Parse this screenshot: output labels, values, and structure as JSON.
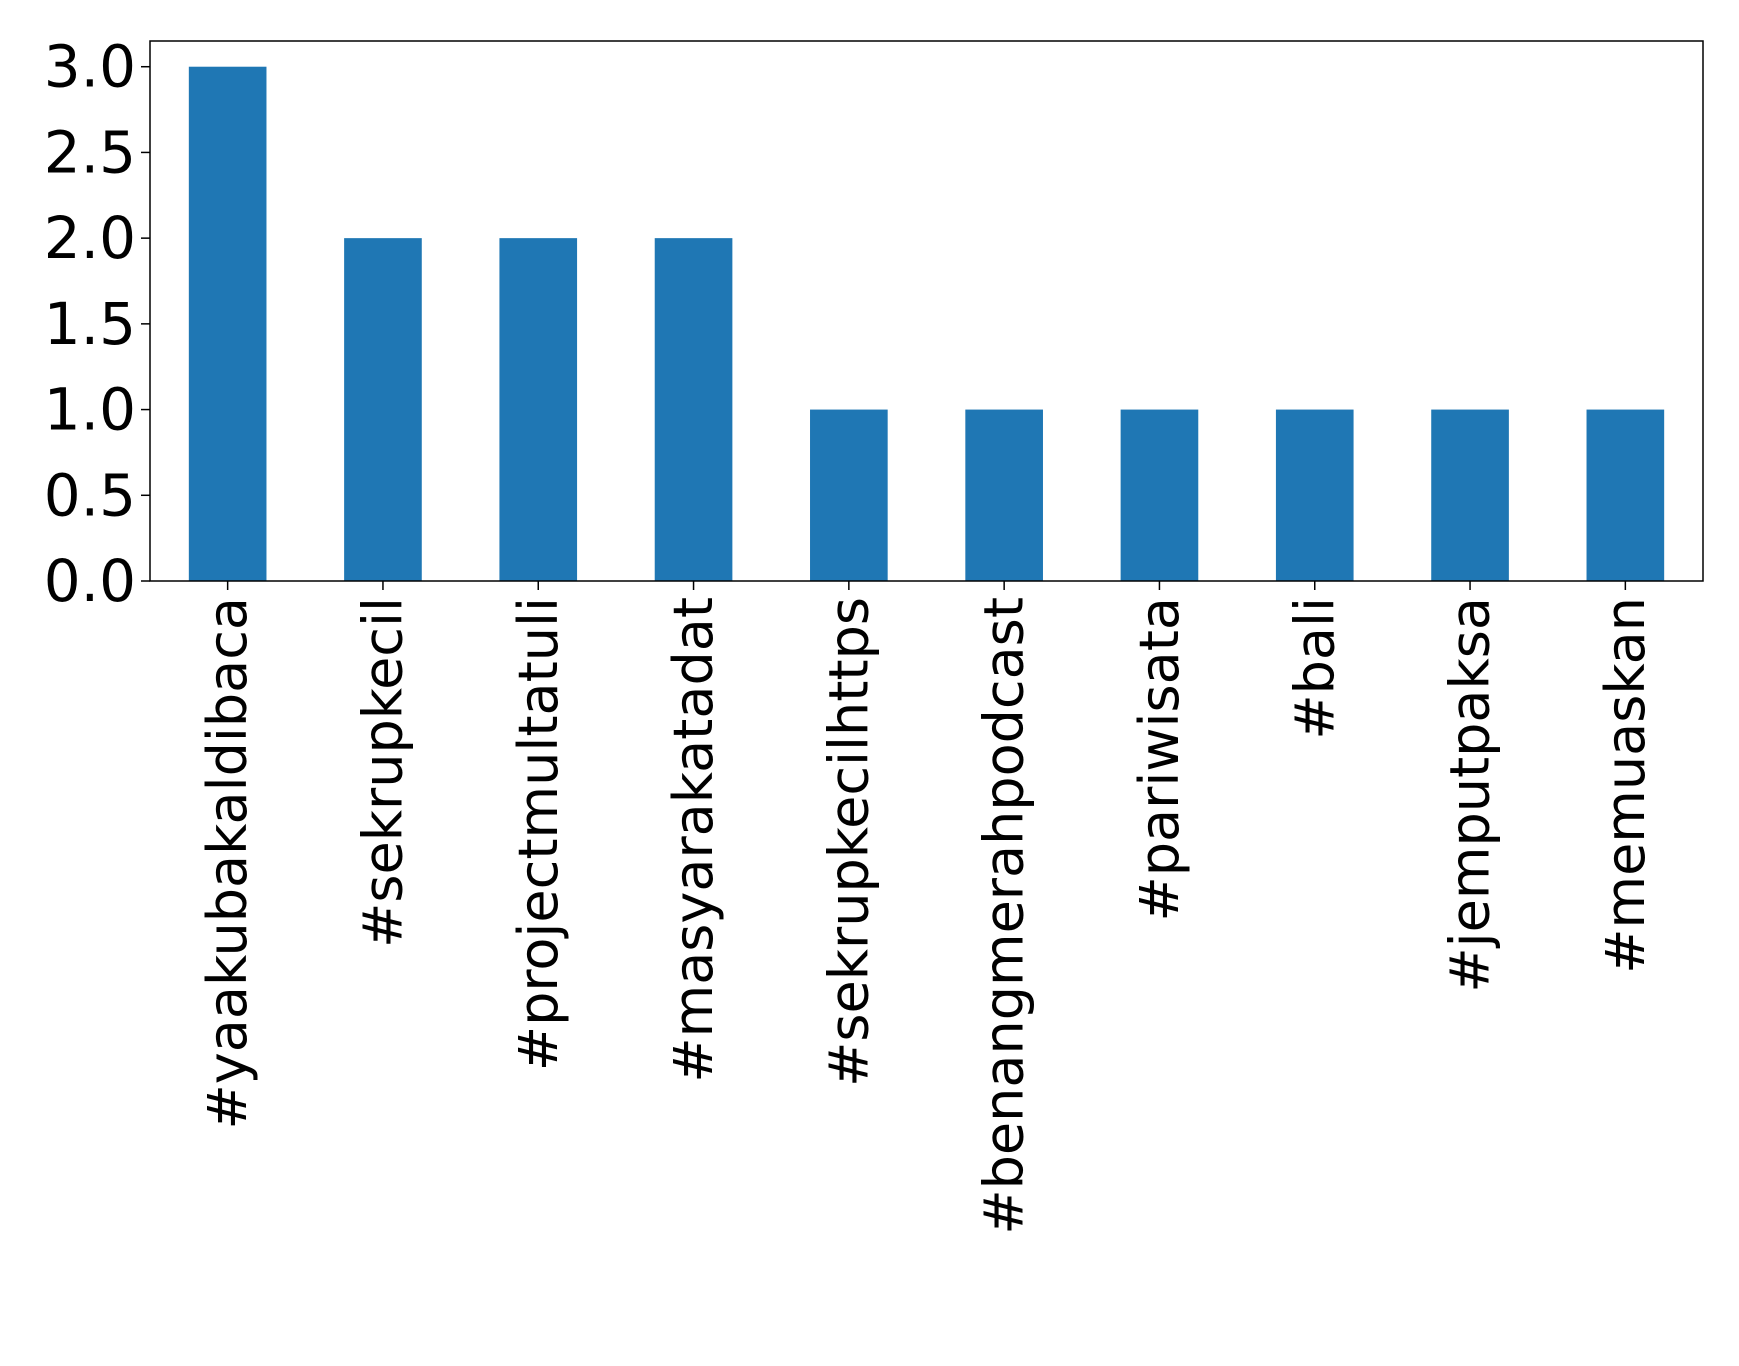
{
  "chart_data": {
    "type": "bar",
    "categories": [
      "#yaakubakaldibaca",
      "#sekrupkecil",
      "#projectmultatuli",
      "#masyarakatadat",
      "#sekrupkecilhttps",
      "#benangmerahpodcast",
      "#pariwisata",
      "#bali",
      "#jemputpaksa",
      "#memuaskan"
    ],
    "values": [
      3,
      2,
      2,
      2,
      1,
      1,
      1,
      1,
      1,
      1
    ],
    "ylim": [
      0,
      3.15
    ],
    "yticks": [
      0.0,
      0.5,
      1.0,
      1.5,
      2.0,
      2.5,
      3.0
    ],
    "ytick_labels": [
      "0.0",
      "0.5",
      "1.0",
      "1.5",
      "2.0",
      "2.5",
      "3.0"
    ],
    "title": "",
    "xlabel": "",
    "ylabel": "",
    "grid": false,
    "bar_color": "#1f77b4"
  }
}
